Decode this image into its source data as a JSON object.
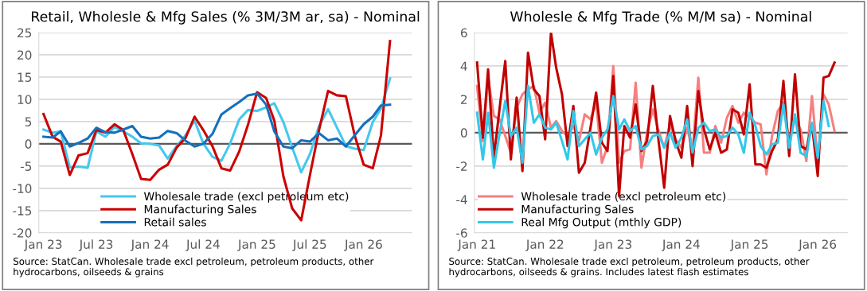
{
  "chart_data": [
    {
      "type": "line",
      "title": "Retail, Wholesle & Mfg Sales (% 3M/3M ar, sa) - Nominal",
      "x": [
        "2023-01",
        "2023-02",
        "2023-03",
        "2023-04",
        "2023-05",
        "2023-06",
        "2023-07",
        "2023-08",
        "2023-09",
        "2023-10",
        "2023-11",
        "2023-12",
        "2024-01",
        "2024-02",
        "2024-03",
        "2024-04",
        "2024-05",
        "2024-06",
        "2024-07",
        "2024-08",
        "2024-09",
        "2024-10",
        "2024-11",
        "2024-12",
        "2025-01",
        "2025-02",
        "2025-03",
        "2025-04",
        "2025-05",
        "2025-06",
        "2025-07",
        "2025-08",
        "2025-09",
        "2025-10",
        "2025-11",
        "2025-12",
        "2026-01",
        "2026-02",
        "2026-03",
        "2026-04"
      ],
      "series": [
        {
          "name": "Wholesale trade (excl petroleum etc)",
          "color": "#45c8ee",
          "values": [
            3.2,
            2.5,
            2.8,
            -5.3,
            -5.1,
            -5.4,
            2.8,
            1.6,
            3.8,
            2.8,
            1.6,
            0.1,
            0,
            -0.4,
            -3.3,
            -0.5,
            1.9,
            5.2,
            0.1,
            -2.9,
            -3.8,
            0.1,
            5.5,
            7.6,
            7.4,
            8.2,
            9.1,
            4.9,
            -0.8,
            -6.4,
            -2.3,
            4.0,
            7.8,
            3.7,
            -0.5,
            -1.1,
            -1.4,
            4.9,
            7.9,
            14.7
          ]
        },
        {
          "name": "Manufacturing Sales",
          "color": "#cc0000",
          "values": [
            6.7,
            1.6,
            0.5,
            -7.0,
            -2.6,
            -2.1,
            3.1,
            2.5,
            4.4,
            3.1,
            -2.3,
            -7.9,
            -8.1,
            -5.8,
            -4.7,
            -0.8,
            1.3,
            6.1,
            3.1,
            -0.5,
            -5.5,
            -6.0,
            -1.7,
            4.3,
            11.6,
            10.3,
            5.2,
            -7.3,
            -14.5,
            -17.2,
            -7.0,
            3.1,
            11.9,
            10.9,
            10.7,
            1.9,
            -4.7,
            -5.5,
            1.9,
            23.1
          ]
        },
        {
          "name": "Retail sales",
          "color": "#1470bd",
          "values": [
            1.6,
            1.4,
            2.8,
            -0.6,
            0.2,
            1.2,
            3.6,
            2.6,
            2.5,
            3.2,
            4.0,
            1.6,
            1.2,
            1.4,
            2.9,
            2.4,
            0.7,
            -0.6,
            0,
            2.2,
            6.6,
            8.0,
            9.4,
            10.9,
            11.3,
            8.8,
            2.8,
            -0.6,
            -1.0,
            0.8,
            0.5,
            2.4,
            0.8,
            1.2,
            -0.6,
            1.9,
            4.4,
            6.1,
            8.6,
            8.8
          ]
        }
      ],
      "xlim": [
        "2022-12-16",
        "2026-06-15"
      ],
      "xticks": [
        {
          "value": "2023-01",
          "label": "Jan 23"
        },
        {
          "value": "2023-07",
          "label": "Jul 23"
        },
        {
          "value": "2024-01",
          "label": "Jan 24"
        },
        {
          "value": "2024-07",
          "label": "Jul 24"
        },
        {
          "value": "2025-01",
          "label": "Jan 25"
        },
        {
          "value": "2025-07",
          "label": "Jul 25"
        },
        {
          "value": "2026-01",
          "label": "Jan 26"
        }
      ],
      "ylim": [
        -20,
        25
      ],
      "yticks": [
        -20,
        -15,
        -10,
        -5,
        0,
        5,
        10,
        15,
        20,
        25
      ],
      "grid": "y",
      "legend": "bottom",
      "ref_lines": [
        {
          "axis": "y",
          "value": 0,
          "color": "#595959"
        }
      ],
      "annotations": [
        "Source: StatCan. Wholesale trade excl petroleum, petroleum products, other hydrocarbons, oilseeds & grains"
      ]
    },
    {
      "type": "line",
      "title": "Wholesle & Mfg Trade (% M/M sa) - Nominal",
      "x": [
        "2021-01",
        "2021-02",
        "2021-03",
        "2021-04",
        "2021-05",
        "2021-06",
        "2021-07",
        "2021-08",
        "2021-09",
        "2021-10",
        "2021-11",
        "2021-12",
        "2022-01",
        "2022-02",
        "2022-03",
        "2022-04",
        "2022-05",
        "2022-06",
        "2022-07",
        "2022-08",
        "2022-09",
        "2022-10",
        "2022-11",
        "2022-12",
        "2023-01",
        "2023-02",
        "2023-03",
        "2023-04",
        "2023-05",
        "2023-06",
        "2023-07",
        "2023-08",
        "2023-09",
        "2023-10",
        "2023-11",
        "2023-12",
        "2024-01",
        "2024-02",
        "2024-03",
        "2024-04",
        "2024-05",
        "2024-06",
        "2024-07",
        "2024-08",
        "2024-09",
        "2024-10",
        "2024-11",
        "2024-12",
        "2025-01",
        "2025-02",
        "2025-03",
        "2025-04",
        "2025-05",
        "2025-06",
        "2025-07",
        "2025-08",
        "2025-09",
        "2025-10",
        "2025-11",
        "2025-12",
        "2026-01",
        "2026-02",
        "2026-03",
        "2026-04"
      ],
      "series": [
        {
          "name": "Wholesale trade (excl petroleum etc)",
          "color": "#f77f7f",
          "values": [
            2.8,
            -0.5,
            3.3,
            1.0,
            0.8,
            -0.2,
            -1.2,
            1.5,
            2.3,
            2.6,
            2.8,
            1.2,
            1.8,
            0.3,
            0.7,
            0.1,
            -0.2,
            0.4,
            -0.5,
            1.1,
            0.8,
            1.8,
            -1.8,
            -0.8,
            4.0,
            -1.8,
            -1.1,
            -1.0,
            3.0,
            -2.1,
            0,
            1.4,
            0.1,
            -0.9,
            0.5,
            -0.4,
            -0.9,
            0.3,
            -1.1,
            3.3,
            -1.2,
            -1.2,
            0.4,
            -0.6,
            0.9,
            1.6,
            0.6,
            1.2,
            0.9,
            0.6,
            0.5,
            -2.5,
            -0.2,
            1.3,
            1.8,
            -0.5,
            0.8,
            0.2,
            -1.7,
            2.2,
            -1.7,
            2.3,
            1.7,
            0.1
          ]
        },
        {
          "name": "Manufacturing Sales",
          "color": "#c00000",
          "values": [
            4.2,
            -0.3,
            3.8,
            -1.5,
            1.4,
            4.3,
            -1.6,
            2.1,
            -2.3,
            4.8,
            2.6,
            2.2,
            -0.4,
            6.0,
            3.9,
            2.3,
            -0.8,
            1.6,
            -2.4,
            -1.8,
            0.3,
            2.4,
            -0.6,
            -1.1,
            3.4,
            -3.8,
            0.4,
            -0.3,
            1.7,
            -1.1,
            -0.5,
            2.8,
            -0.5,
            -3.3,
            1.0,
            -0.5,
            -1.5,
            1.6,
            -2.0,
            2.5,
            0.2,
            -1.0,
            0,
            -1.2,
            -1.0,
            1.4,
            1.2,
            -0.1,
            2.9,
            -1.9,
            -1.9,
            -2.1,
            -1.1,
            -0.4,
            3.1,
            -1.4,
            3.5,
            -0.8,
            -1.0,
            0.5,
            -2.6,
            3.3,
            3.4,
            4.2
          ]
        },
        {
          "name": "Real Mfg Output (mthly GDP)",
          "color": "#33c8ea",
          "values": [
            1.2,
            -1.6,
            1.2,
            -2.1,
            -0.1,
            1.9,
            -0.2,
            0.3,
            -1.8,
            2.8,
            0.6,
            1.1,
            0.3,
            0.2,
            0.6,
            -0.5,
            -1.6,
            1.3,
            -0.8,
            -0.4,
            0,
            -1.3,
            -0.3,
            0.2,
            2.2,
            0.2,
            0.8,
            0.1,
            0.4,
            -1.0,
            -0.8,
            -0.2,
            -0.1,
            -0.9,
            0,
            -0.9,
            -0.3,
            0.8,
            -1.2,
            0.3,
            0.6,
            0.1,
            0.2,
            -0.3,
            -0.2,
            0.3,
            -0.1,
            -1.2,
            1.2,
            0.4,
            -0.8,
            -1.3,
            -0.7,
            -0.6,
            1.7,
            -0.9,
            1.1,
            -1.2,
            -1.4,
            0.6,
            -1.5,
            1.9,
            0.4,
            null
          ]
        }
      ],
      "xlim": [
        "2020-12-18",
        "2026-06-10"
      ],
      "xticks": [
        {
          "value": "2021-01",
          "label": "Jan 21"
        },
        {
          "value": "2022-01",
          "label": "Jan 22"
        },
        {
          "value": "2023-01",
          "label": "Jan 23"
        },
        {
          "value": "2024-01",
          "label": "Jan 24"
        },
        {
          "value": "2025-01",
          "label": "Jan 25"
        },
        {
          "value": "2026-01",
          "label": "Jan 26"
        }
      ],
      "ylim": [
        -6,
        6
      ],
      "yticks": [
        -6,
        -4,
        -2,
        0,
        2,
        4,
        6
      ],
      "grid": "y",
      "legend": "bottom left",
      "ref_lines": [
        {
          "axis": "y",
          "value": 0,
          "color": "#595959"
        }
      ],
      "annotations": [
        "Source: StatCan. Wholesale trade excl petroleum, petroleum products, other hydrocarbons, oilseeds & grains. Includes latest flash estimates"
      ]
    }
  ]
}
